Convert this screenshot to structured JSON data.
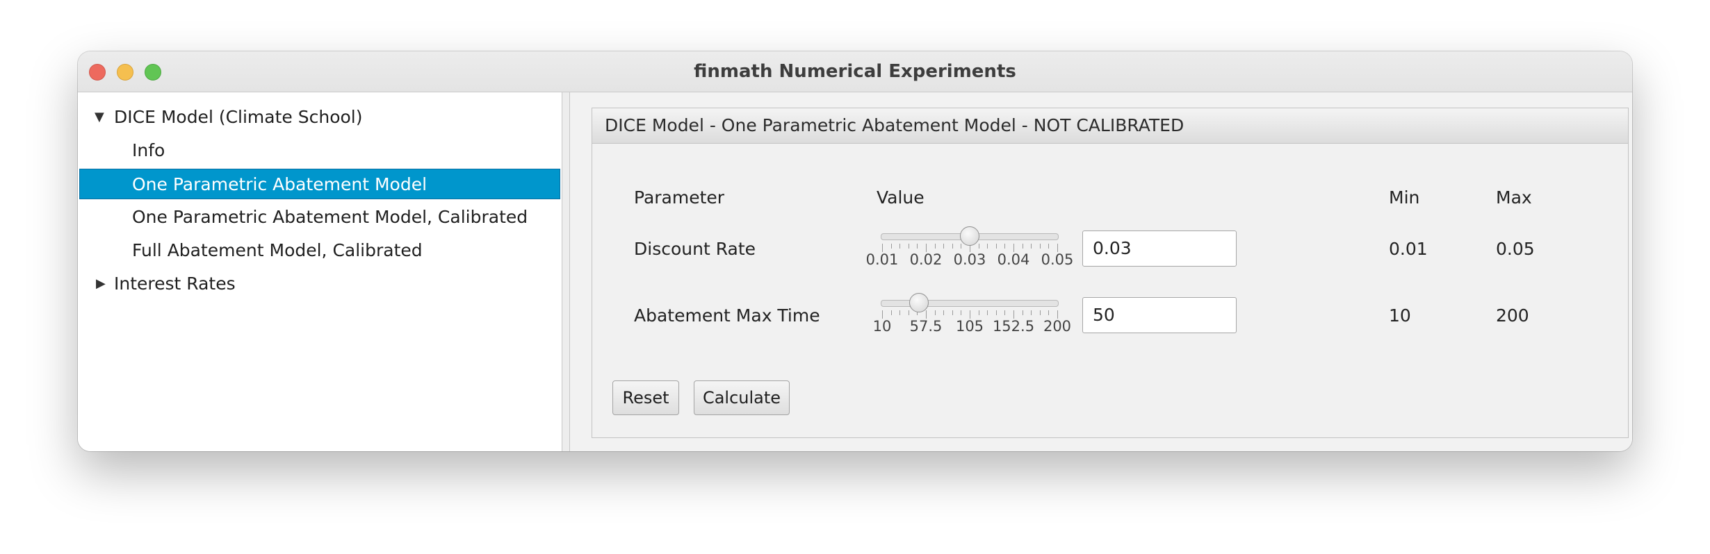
{
  "window": {
    "title": "finmath Numerical Experiments"
  },
  "tree": {
    "items": [
      {
        "label": "DICE Model (Climate School)",
        "expanded": true,
        "level": 0
      },
      {
        "label": "Info",
        "level": 1
      },
      {
        "label": "One Parametric Abatement Model",
        "level": 1,
        "selected": true
      },
      {
        "label": "One Parametric Abatement Model, Calibrated",
        "level": 1
      },
      {
        "label": "Full Abatement Model, Calibrated",
        "level": 1
      },
      {
        "label": "Interest Rates",
        "expanded": false,
        "level": 0
      }
    ]
  },
  "panel": {
    "title": "DICE Model - One Parametric Abatement Model - NOT CALIBRATED",
    "headers": {
      "parameter": "Parameter",
      "value": "Value",
      "min": "Min",
      "max": "Max"
    },
    "parameters": [
      {
        "name": "Discount Rate",
        "value": "0.03",
        "min": "0.01",
        "max": "0.05",
        "slider_position": 0.5,
        "tick_labels": [
          "0.01",
          "0.02",
          "0.03",
          "0.04",
          "0.05"
        ]
      },
      {
        "name": "Abatement Max Time",
        "value": "50",
        "min": "10",
        "max": "200",
        "slider_position": 0.2105,
        "tick_labels": [
          "10",
          "57.5",
          "105",
          "152.5",
          "200"
        ]
      }
    ],
    "buttons": {
      "reset": "Reset",
      "calculate": "Calculate"
    }
  },
  "colors": {
    "selection": "#0096cc",
    "close": "#ed6a5e",
    "minimize": "#f5bf4f",
    "maximize": "#61c554"
  }
}
